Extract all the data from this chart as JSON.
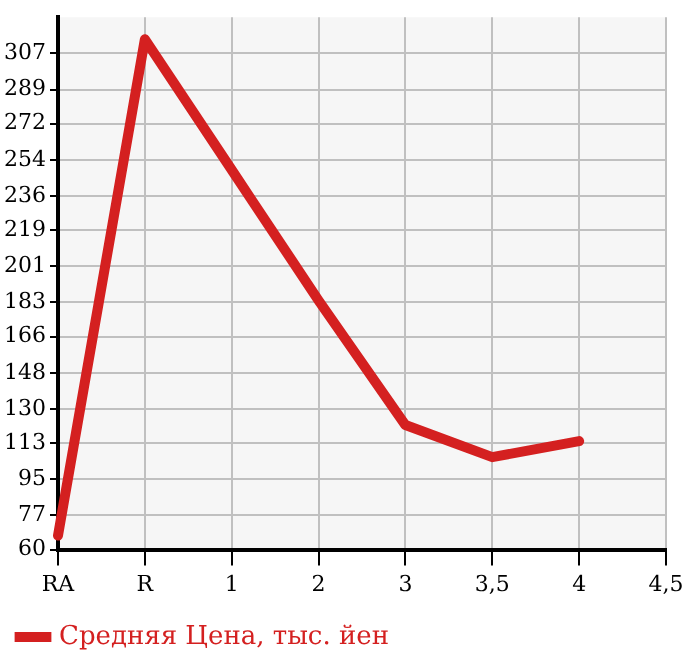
{
  "chart_data": {
    "type": "line",
    "categories": [
      "RA",
      "R",
      "1",
      "2",
      "3",
      "3,5",
      "4",
      "4,5"
    ],
    "series": [
      {
        "name": "Средняя Цена, тыс. йен",
        "color": "#d42020",
        "values": [
          67,
          314,
          249,
          184,
          122,
          106,
          114,
          null
        ]
      }
    ],
    "ylim": [
      60,
      325
    ],
    "yticks": [
      60,
      77,
      95,
      113,
      130,
      148,
      166,
      183,
      201,
      219,
      236,
      254,
      272,
      289,
      307
    ],
    "grid": true,
    "legend": "bottom left",
    "marker": "none",
    "line_style": "solid"
  }
}
